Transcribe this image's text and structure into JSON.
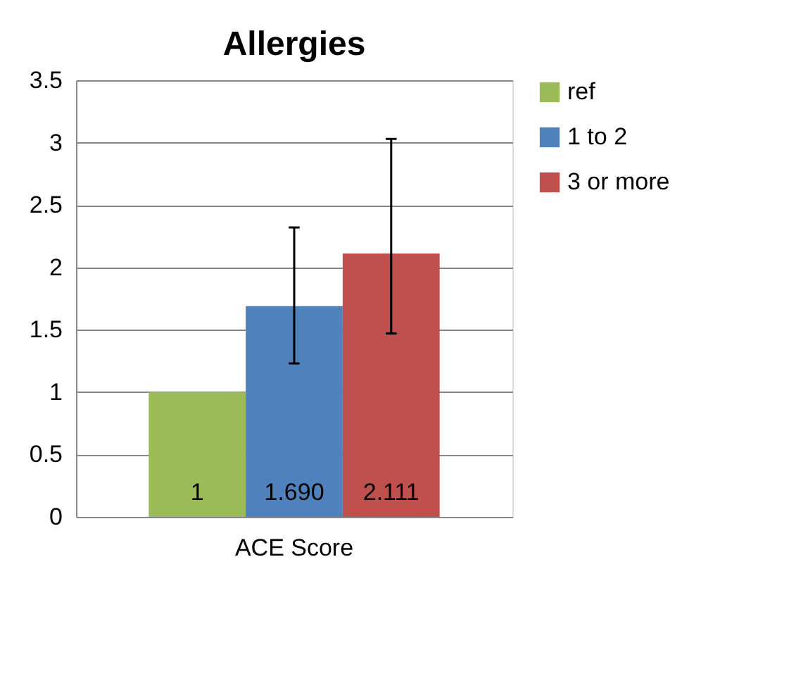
{
  "chart_data": {
    "type": "bar",
    "title": "Allergies",
    "categories": [
      null,
      "ACE Score",
      null
    ],
    "series": [
      {
        "name": "ref",
        "color": "#9bbb59",
        "values": [
          1,
          null,
          null
        ],
        "value_labels": [
          "1",
          null,
          null
        ]
      },
      {
        "name": "1 to 2",
        "color": "#4f81bd",
        "values": [
          null,
          1.69,
          null
        ],
        "value_labels": [
          null,
          "1.690",
          null
        ],
        "errors": [
          null,
          [
            1.23,
            2.32
          ],
          null
        ]
      },
      {
        "name": "3 or more",
        "color": "#c0504d",
        "values": [
          null,
          null,
          2.111
        ],
        "value_labels": [
          null,
          null,
          "2.111"
        ],
        "errors": [
          null,
          null,
          [
            1.47,
            3.03
          ]
        ]
      }
    ],
    "ylim": [
      0,
      3.5
    ],
    "yticks": [
      0,
      0.5,
      1,
      1.5,
      2,
      2.5,
      3,
      3.5
    ],
    "grid": "y",
    "legend": "right"
  }
}
